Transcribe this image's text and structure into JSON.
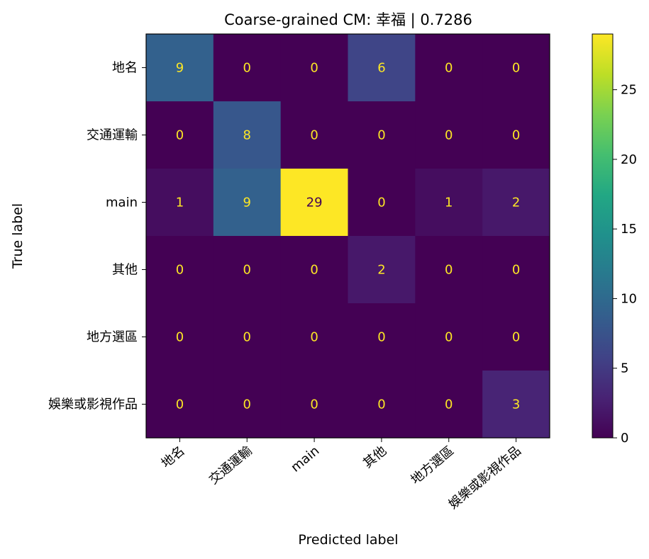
{
  "chart_data": {
    "type": "heatmap",
    "title": "Coarse-grained CM: 幸福 | 0.7286",
    "xlabel": "Predicted label",
    "ylabel": "True label",
    "x_categories": [
      "地名",
      "交通運輸",
      "main",
      "其他",
      "地方選區",
      "娛樂或影視作品"
    ],
    "y_categories": [
      "地名",
      "交通運輸",
      "main",
      "其他",
      "地方選區",
      "娛樂或影視作品"
    ],
    "values": [
      [
        9,
        0,
        0,
        6,
        0,
        0
      ],
      [
        0,
        8,
        0,
        0,
        0,
        0
      ],
      [
        1,
        9,
        29,
        0,
        1,
        2
      ],
      [
        0,
        0,
        0,
        2,
        0,
        0
      ],
      [
        0,
        0,
        0,
        0,
        0,
        0
      ],
      [
        0,
        0,
        0,
        0,
        0,
        3
      ]
    ],
    "colorscale": "viridis",
    "value_range": [
      0,
      29
    ],
    "colorbar_ticks": [
      0,
      5,
      10,
      15,
      20,
      25
    ],
    "cell_text_color_dark": "#fde725",
    "cell_text_color_light": "#440154"
  }
}
